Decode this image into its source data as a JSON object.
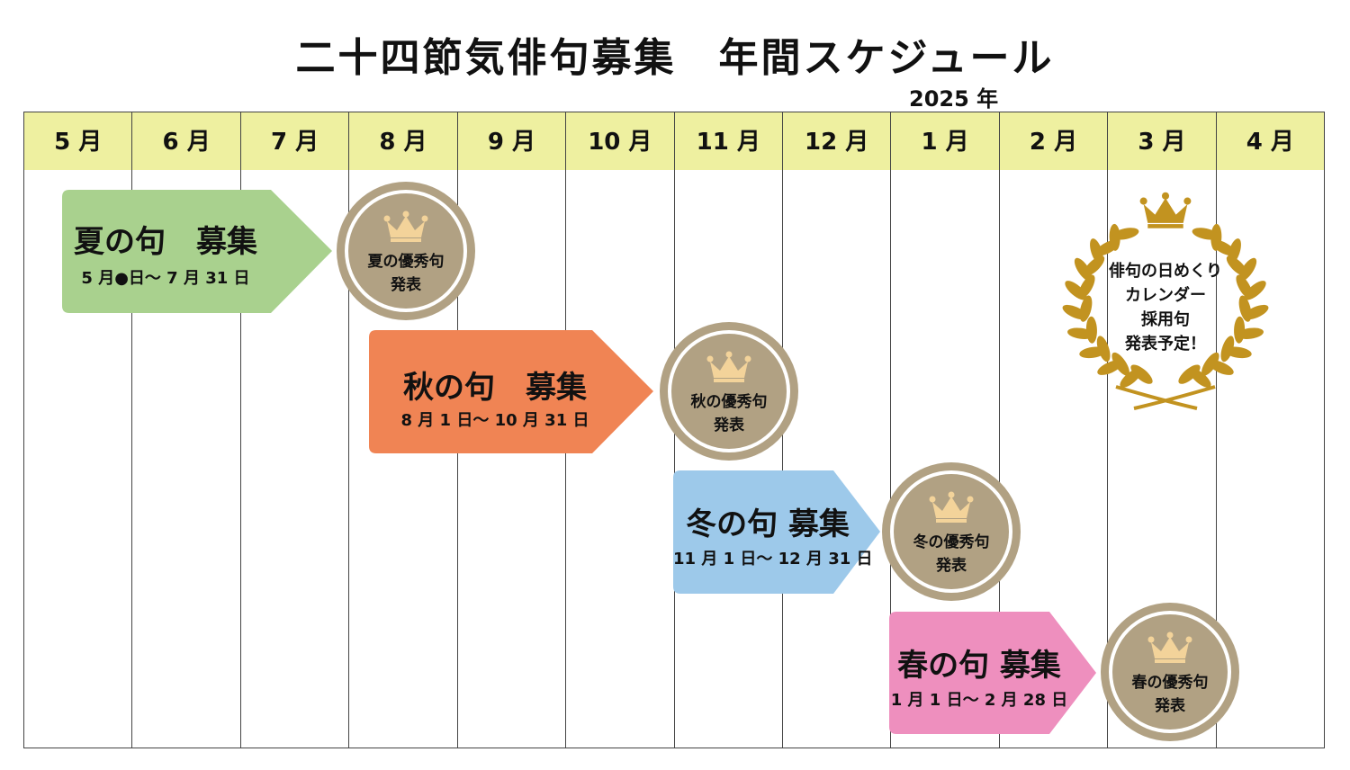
{
  "title": "二十四節気俳句募集　年間スケジュール",
  "year": "2025 年",
  "months": [
    "5 月",
    "6 月",
    "7 月",
    "8 月",
    "9 月",
    "10 月",
    "11 月",
    "12 月",
    "1 月",
    "2 月",
    "3 月",
    "4 月"
  ],
  "colors": {
    "header": "#eef0a0",
    "summer": "#a9d18e",
    "autumn": "#f08454",
    "winter": "#9dc9ea",
    "spring": "#ee8fbe",
    "medal": "#b1a183",
    "medal_ring": "#ffffff",
    "crown": "#f3d39a",
    "laurel": "#c29320"
  },
  "campaigns": [
    {
      "title": "夏の句　募集",
      "period": "5 月●日～ 7 月 31 日"
    },
    {
      "title": "秋の句　募集",
      "period": "8 月 1 日～ 10 月 31 日"
    },
    {
      "title": "冬の句 募集",
      "period": "11 月 1 日～ 12 月 31 日"
    },
    {
      "title": "春の句 募集",
      "period": "1 月 1 日～ 2 月 28 日"
    }
  ],
  "announcements": [
    {
      "line1": "夏の優秀句",
      "line2": "発表",
      "icon": "crown-icon"
    },
    {
      "line1": "秋の優秀句",
      "line2": "発表",
      "icon": "crown-icon"
    },
    {
      "line1": "冬の優秀句",
      "line2": "発表",
      "icon": "crown-icon"
    },
    {
      "line1": "春の優秀句",
      "line2": "発表",
      "icon": "crown-icon"
    }
  ],
  "calendar": {
    "lines": [
      "俳句の日めくり",
      "カレンダー",
      "採用句",
      "発表予定！"
    ],
    "icon": "laurel-wreath-icon"
  }
}
